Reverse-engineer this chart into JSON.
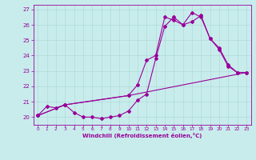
{
  "xlabel": "Windchill (Refroidissement éolien,°C)",
  "bg_color": "#c8ecec",
  "grid_color": "#b0d8d8",
  "line_color": "#990099",
  "xlim": [
    -0.5,
    23.5
  ],
  "ylim": [
    19.5,
    27.3
  ],
  "yticks": [
    20,
    21,
    22,
    23,
    24,
    25,
    26,
    27
  ],
  "xticks": [
    0,
    1,
    2,
    3,
    4,
    5,
    6,
    7,
    8,
    9,
    10,
    11,
    12,
    13,
    14,
    15,
    16,
    17,
    18,
    19,
    20,
    21,
    22,
    23
  ],
  "line1_x": [
    0,
    1,
    2,
    3,
    4,
    5,
    6,
    7,
    8,
    9,
    10,
    11,
    12,
    13,
    14,
    15,
    16,
    17,
    18,
    19,
    20,
    21,
    22
  ],
  "line1_y": [
    20.1,
    20.7,
    20.6,
    20.8,
    20.3,
    20.0,
    20.0,
    19.9,
    20.0,
    20.1,
    20.4,
    21.1,
    21.5,
    23.8,
    25.9,
    26.5,
    26.0,
    26.2,
    26.6,
    25.1,
    24.4,
    23.3,
    22.9
  ],
  "line2_x": [
    0,
    3,
    10,
    23
  ],
  "line2_y": [
    20.1,
    20.8,
    21.4,
    22.9
  ],
  "line3_x": [
    0,
    3,
    10,
    11,
    12,
    13,
    14,
    15,
    16,
    17,
    18,
    19,
    20,
    21,
    22,
    23
  ],
  "line3_y": [
    20.1,
    20.8,
    21.4,
    22.1,
    23.7,
    24.0,
    26.5,
    26.3,
    26.0,
    26.8,
    26.5,
    25.1,
    24.5,
    23.4,
    22.9,
    22.9
  ]
}
